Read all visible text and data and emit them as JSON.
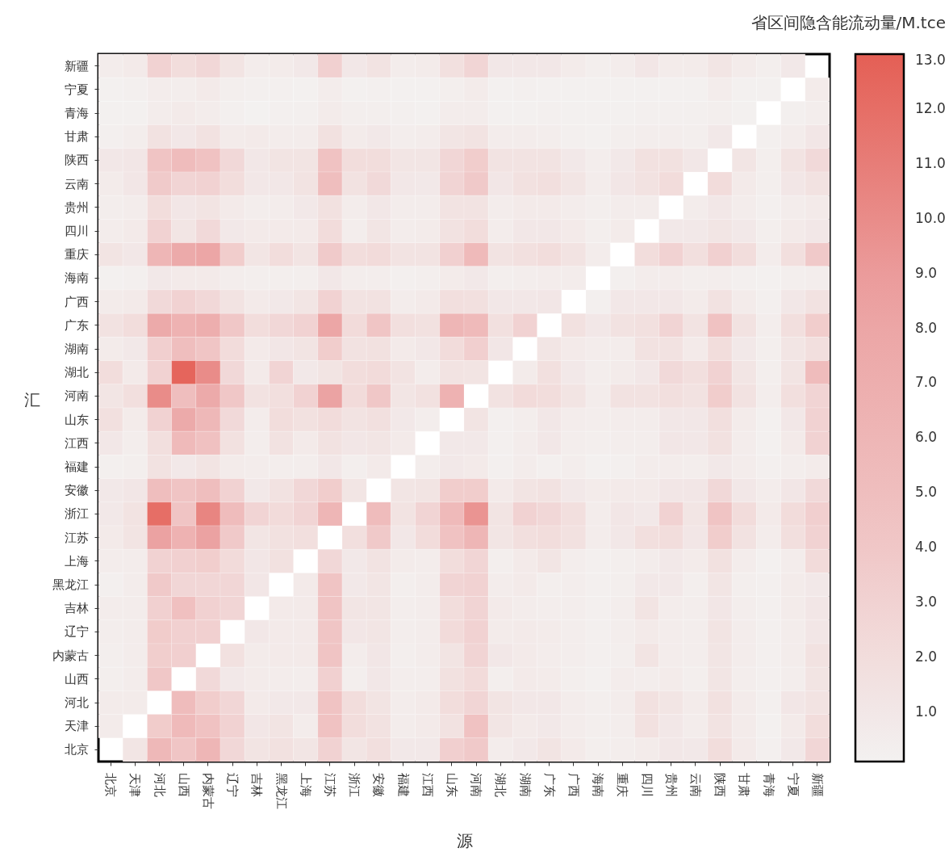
{
  "chart_data": {
    "type": "heatmap",
    "xlabel": "源",
    "ylabel": "汇",
    "clabel": "省区间隐含能流动量/M.tce",
    "categories": [
      "北京",
      "天津",
      "河北",
      "山西",
      "内蒙古",
      "辽宁",
      "吉林",
      "黑龙江",
      "上海",
      "江苏",
      "浙江",
      "安徽",
      "福建",
      "江西",
      "山东",
      "河南",
      "湖北",
      "湖南",
      "广东",
      "广西",
      "海南",
      "重庆",
      "四川",
      "贵州",
      "云南",
      "陕西",
      "甘肃",
      "青海",
      "宁夏",
      "新疆"
    ],
    "y_categories": [
      "新疆",
      "宁夏",
      "青海",
      "甘肃",
      "陕西",
      "云南",
      "贵州",
      "四川",
      "重庆",
      "海南",
      "广西",
      "广东",
      "湖南",
      "湖北",
      "河南",
      "山东",
      "江西",
      "福建",
      "安徽",
      "浙江",
      "江苏",
      "上海",
      "黑龙江",
      "吉林",
      "辽宁",
      "内蒙古",
      "山西",
      "河北",
      "天津",
      "北京"
    ],
    "cells": [
      [
        0.6,
        0.8,
        3,
        2,
        2.5,
        1.3,
        0.6,
        0.7,
        0.9,
        3.2,
        1,
        1.4,
        0.6,
        0.7,
        1.7,
        2.7,
        1,
        1,
        1,
        0.7,
        0.4,
        0.6,
        1.1,
        0.7,
        0.7,
        1.2,
        0.7,
        0.4,
        0.9,
        null
      ],
      [
        0.2,
        0.3,
        0.6,
        0.5,
        0.8,
        0.4,
        0.3,
        0.3,
        0.2,
        0.6,
        0.2,
        0.3,
        0.2,
        0.2,
        0.4,
        0.7,
        0.2,
        0.3,
        0.2,
        0.2,
        0.2,
        0.2,
        0.2,
        0.2,
        0.2,
        0.6,
        0.2,
        0.2,
        null,
        0.7
      ],
      [
        0.2,
        0.2,
        0.6,
        0.8,
        0.6,
        0.3,
        0.1,
        0.3,
        0.3,
        0.7,
        0.4,
        0.4,
        0.3,
        0.2,
        0.6,
        0.6,
        0.2,
        0.2,
        0.3,
        0.2,
        0.2,
        0.2,
        0.3,
        0.3,
        0.3,
        0.4,
        0.2,
        null,
        0.3,
        0.5
      ],
      [
        0.3,
        0.5,
        1.5,
        1,
        1.5,
        0.7,
        0.8,
        0.6,
        0.6,
        1.6,
        0.7,
        0.9,
        0.5,
        0.6,
        1.2,
        1.4,
        0.6,
        0.6,
        0.5,
        0.3,
        0.2,
        0.4,
        0.5,
        0.5,
        0.4,
        0.9,
        null,
        0.3,
        0.6,
        1.1
      ],
      [
        1,
        1.1,
        4.3,
        5.3,
        4.5,
        2.4,
        1,
        1.3,
        1.3,
        4.5,
        2,
        2,
        1.2,
        1.2,
        2.6,
        3.5,
        1.4,
        1.4,
        1.4,
        0.9,
        0.5,
        0.9,
        1.6,
        1.6,
        1,
        null,
        1.2,
        0.4,
        1.4,
        2.3
      ],
      [
        0.7,
        1.1,
        3.7,
        2.8,
        3,
        2,
        1,
        1,
        1.4,
        5,
        1.5,
        2.3,
        1,
        0.9,
        2.8,
        3.8,
        1.1,
        1.6,
        1.8,
        1.2,
        0.6,
        1.1,
        1.5,
        2.1,
        null,
        2.1,
        0.8,
        0.4,
        1.1,
        1.5
      ],
      [
        0.5,
        0.6,
        2,
        1.1,
        1.3,
        0.8,
        0.5,
        0.6,
        0.9,
        1.6,
        0.6,
        1,
        0.6,
        0.6,
        1.4,
        1.4,
        0.6,
        0.8,
        0.8,
        0.6,
        0.4,
        0.6,
        0.6,
        null,
        0.6,
        1,
        0.6,
        0.3,
        0.6,
        0.8
      ],
      [
        0.6,
        0.8,
        3,
        1.2,
        2.3,
        0.9,
        0.8,
        0.8,
        0.8,
        2.1,
        0.5,
        1.2,
        0.6,
        0.7,
        1.5,
        2,
        0.6,
        1,
        1,
        0.8,
        0.4,
        0.7,
        null,
        0.9,
        0.9,
        1.2,
        0.9,
        0.4,
        0.8,
        1
      ],
      [
        1.3,
        1,
        6,
        7.5,
        8,
        3.5,
        1.2,
        2,
        1.3,
        3.7,
        2,
        2.2,
        1.4,
        1.4,
        3.2,
        5.5,
        1.4,
        1.7,
        2,
        1.4,
        0.6,
        null,
        2,
        3,
        1.8,
        3.2,
        2,
        0.6,
        1.8,
        3.8
      ],
      [
        0.2,
        0.3,
        0.9,
        0.8,
        0.8,
        0.5,
        0.4,
        0.4,
        0.4,
        1,
        0.5,
        0.5,
        0.3,
        0.4,
        0.7,
        0.9,
        0.4,
        0.5,
        0.6,
        0.6,
        null,
        0.3,
        0.6,
        0.6,
        0.4,
        0.5,
        0.3,
        0.2,
        0.4,
        0.5
      ],
      [
        0.7,
        0.8,
        2.3,
        3,
        2.4,
        1.4,
        0.8,
        0.9,
        1.2,
        3,
        1.4,
        1.5,
        0.6,
        0.8,
        1.8,
        1.7,
        1,
        1,
        1.1,
        null,
        0.3,
        1,
        1,
        1,
        0.7,
        1.5,
        0.7,
        0.3,
        1,
        1.5
      ],
      [
        1.5,
        2,
        7.5,
        6.5,
        7,
        4,
        2,
        2.5,
        3,
        8,
        2.2,
        4.2,
        1.8,
        1.6,
        6,
        5.5,
        1.7,
        3,
        null,
        1.6,
        1,
        1.5,
        1.7,
        2.8,
        1.4,
        4.5,
        1.5,
        0.5,
        1.8,
        3.5
      ],
      [
        0.7,
        0.9,
        3.3,
        5,
        4.2,
        2.1,
        0.8,
        1.1,
        1.3,
        3.5,
        1.5,
        1.6,
        0.8,
        1,
        2.1,
        3.3,
        1.1,
        null,
        1.2,
        0.8,
        0.6,
        0.6,
        1.5,
        1.5,
        0.8,
        2,
        0.9,
        0.4,
        1.2,
        1.8
      ],
      [
        2,
        0.8,
        3,
        12.6,
        10,
        2.4,
        0.8,
        2.8,
        0.9,
        1.3,
        2,
        2.2,
        1.4,
        0.6,
        1.4,
        1.3,
        null,
        0.7,
        1.7,
        0.9,
        0.5,
        0.7,
        1,
        2.3,
        1.8,
        3,
        1.2,
        0.4,
        1.3,
        5.2
      ],
      [
        1.2,
        1.8,
        10,
        5,
        7.5,
        4,
        1.5,
        1.8,
        3,
        8.3,
        2.2,
        4,
        1.2,
        1.6,
        6.5,
        null,
        1.5,
        2.2,
        2,
        1.3,
        0.6,
        1.5,
        1.5,
        1.8,
        1.5,
        3.5,
        1.5,
        0.5,
        1.8,
        2.8
      ],
      [
        1.7,
        0.7,
        3,
        7.5,
        5.8,
        2.3,
        0.6,
        2,
        1.6,
        2.1,
        1.4,
        1.7,
        0.9,
        0.5,
        null,
        1.3,
        0.3,
        0.5,
        1,
        0.6,
        0.5,
        0.6,
        0.6,
        1,
        1,
        1.8,
        0.7,
        0.2,
        1,
        3
      ],
      [
        1,
        0.5,
        1.8,
        5.5,
        4.7,
        1.6,
        0.5,
        1.5,
        0.8,
        1.5,
        1.1,
        1.2,
        0.8,
        null,
        0.9,
        0.9,
        0.3,
        0.6,
        1,
        0.5,
        0.4,
        0.5,
        0.5,
        1.1,
        1,
        1.6,
        0.6,
        0.2,
        0.8,
        3
      ],
      [
        0.3,
        0.4,
        1.5,
        0.9,
        1.3,
        0.7,
        0.6,
        0.5,
        0.5,
        1,
        0.4,
        0.8,
        null,
        0.5,
        0.9,
        0.8,
        0.3,
        0.6,
        0.3,
        0.5,
        0.2,
        0.3,
        0.6,
        0.6,
        0.5,
        0.9,
        0.6,
        0.3,
        0.5,
        0.7
      ],
      [
        0.9,
        1.1,
        5,
        4.3,
        5,
        3,
        0.9,
        1.5,
        2.5,
        3.5,
        1.2,
        null,
        1.2,
        1.3,
        3.5,
        3.5,
        0.8,
        1.3,
        1.5,
        0.9,
        0.7,
        0.8,
        0.8,
        1.1,
        1.1,
        2.4,
        1,
        0.6,
        1.1,
        2.3
      ],
      [
        0.9,
        1.4,
        12,
        4.3,
        10.5,
        5.2,
        2.8,
        2.2,
        2.8,
        6,
        null,
        5.2,
        1.4,
        2.8,
        5.5,
        9.5,
        1.3,
        3,
        2.5,
        1.8,
        0.6,
        1.1,
        0.9,
        3,
        1.2,
        4.3,
        2.1,
        0.8,
        2.1,
        3.3
      ],
      [
        0.8,
        1.3,
        8.5,
        6.5,
        8.5,
        3.8,
        1.2,
        1.6,
        1.8,
        null,
        1.8,
        3.8,
        1,
        2.1,
        4.5,
        6,
        1.2,
        1.8,
        2,
        1.6,
        0.6,
        1,
        1.8,
        2,
        1.1,
        3.5,
        1.5,
        0.6,
        1.8,
        3
      ],
      [
        0.6,
        0.6,
        3,
        3.2,
        3.4,
        2.2,
        1.1,
        1.6,
        null,
        2.5,
        0.9,
        1.4,
        0.7,
        0.6,
        2,
        2.7,
        0.4,
        0.8,
        1.2,
        0.5,
        0.3,
        0.4,
        0.6,
        0.9,
        0.7,
        1.6,
        0.6,
        0.2,
        0.6,
        2.2
      ],
      [
        0.3,
        0.6,
        3.8,
        2.6,
        2.6,
        2.6,
        1.1,
        null,
        0.8,
        4.3,
        0.9,
        1.2,
        0.4,
        0.6,
        2.8,
        3,
        0.6,
        0.8,
        0.4,
        0.5,
        0.3,
        0.4,
        0.9,
        0.9,
        0.4,
        1.2,
        0.4,
        0.3,
        0.7,
        0.9
      ],
      [
        0.6,
        0.6,
        3.2,
        4.8,
        3.1,
        2.7,
        null,
        0.8,
        0.8,
        4.3,
        1.2,
        1.2,
        0.5,
        0.6,
        2,
        2.8,
        0.8,
        0.6,
        0.5,
        0.5,
        0.3,
        0.5,
        1.3,
        0.6,
        0.5,
        1.1,
        0.5,
        0.3,
        0.7,
        1.1
      ],
      [
        0.5,
        0.6,
        3.6,
        3.2,
        3.2,
        null,
        1,
        0.8,
        0.8,
        4.2,
        1.1,
        1.2,
        0.5,
        0.6,
        2.2,
        3,
        0.7,
        0.8,
        0.7,
        0.5,
        0.3,
        0.5,
        0.8,
        0.6,
        0.5,
        1.3,
        0.6,
        0.3,
        0.6,
        1.1
      ],
      [
        0.4,
        0.6,
        3.4,
        3.3,
        null,
        1.6,
        0.7,
        0.8,
        0.8,
        4.3,
        0.6,
        1.1,
        0.4,
        0.6,
        1.3,
        2.8,
        1,
        0.8,
        0.6,
        0.5,
        0.3,
        0.4,
        1.3,
        0.6,
        0.5,
        1.2,
        0.6,
        0.3,
        0.6,
        1.5
      ],
      [
        0.4,
        0.6,
        4,
        null,
        2.3,
        0.9,
        0.7,
        0.6,
        0.5,
        3.2,
        0.4,
        1,
        0.5,
        0.5,
        1.6,
        2.2,
        0.4,
        0.8,
        0.7,
        0.4,
        0.2,
        0.6,
        0.5,
        0.7,
        0.4,
        1.2,
        0.5,
        0.3,
        0.5,
        1.3
      ],
      [
        0.7,
        0.7,
        null,
        5.3,
        3.5,
        2.6,
        0.8,
        0.9,
        0.9,
        4.4,
        2,
        1.3,
        0.6,
        0.8,
        2,
        2.7,
        1.3,
        1,
        1,
        0.6,
        0.4,
        0.6,
        1.6,
        1.2,
        0.7,
        1.6,
        0.7,
        0.3,
        1.1,
        1.4
      ],
      [
        0.7,
        null,
        3.6,
        5.5,
        4.5,
        3,
        1.1,
        1.3,
        0.6,
        4.5,
        2,
        1.5,
        0.6,
        0.8,
        1.5,
        4.5,
        1.2,
        0.8,
        0.9,
        0.6,
        0.4,
        0.5,
        1.6,
        1,
        0.6,
        1.4,
        0.7,
        0.2,
        0.8,
        2
      ],
      [
        null,
        1.2,
        5.8,
        4.2,
        6,
        2.5,
        1.3,
        1.6,
        1.2,
        3,
        1.2,
        1.8,
        0.9,
        0.9,
        3.3,
        3.8,
        0.6,
        0.9,
        1.3,
        0.8,
        0.4,
        0.5,
        0.7,
        1,
        0.9,
        2,
        0.8,
        0.3,
        0.9,
        2.6
      ]
    ],
    "clim": [
      0.1,
      13.0
    ],
    "cticks": [
      {
        "value": 1,
        "label": "1.0"
      },
      {
        "value": 2,
        "label": "2.0"
      },
      {
        "value": 3,
        "label": "3.0"
      },
      {
        "value": 4,
        "label": "4.0"
      },
      {
        "value": 5,
        "label": "5.0"
      },
      {
        "value": 6,
        "label": "6.0"
      },
      {
        "value": 7,
        "label": "7.0"
      },
      {
        "value": 8,
        "label": "8.0"
      },
      {
        "value": 9,
        "label": "9.0"
      },
      {
        "value": 10,
        "label": "10.0"
      },
      {
        "value": 11,
        "label": "11.0"
      },
      {
        "value": 12,
        "label": "12.0"
      },
      {
        "value": 13,
        "label": "13.0"
      }
    ]
  }
}
